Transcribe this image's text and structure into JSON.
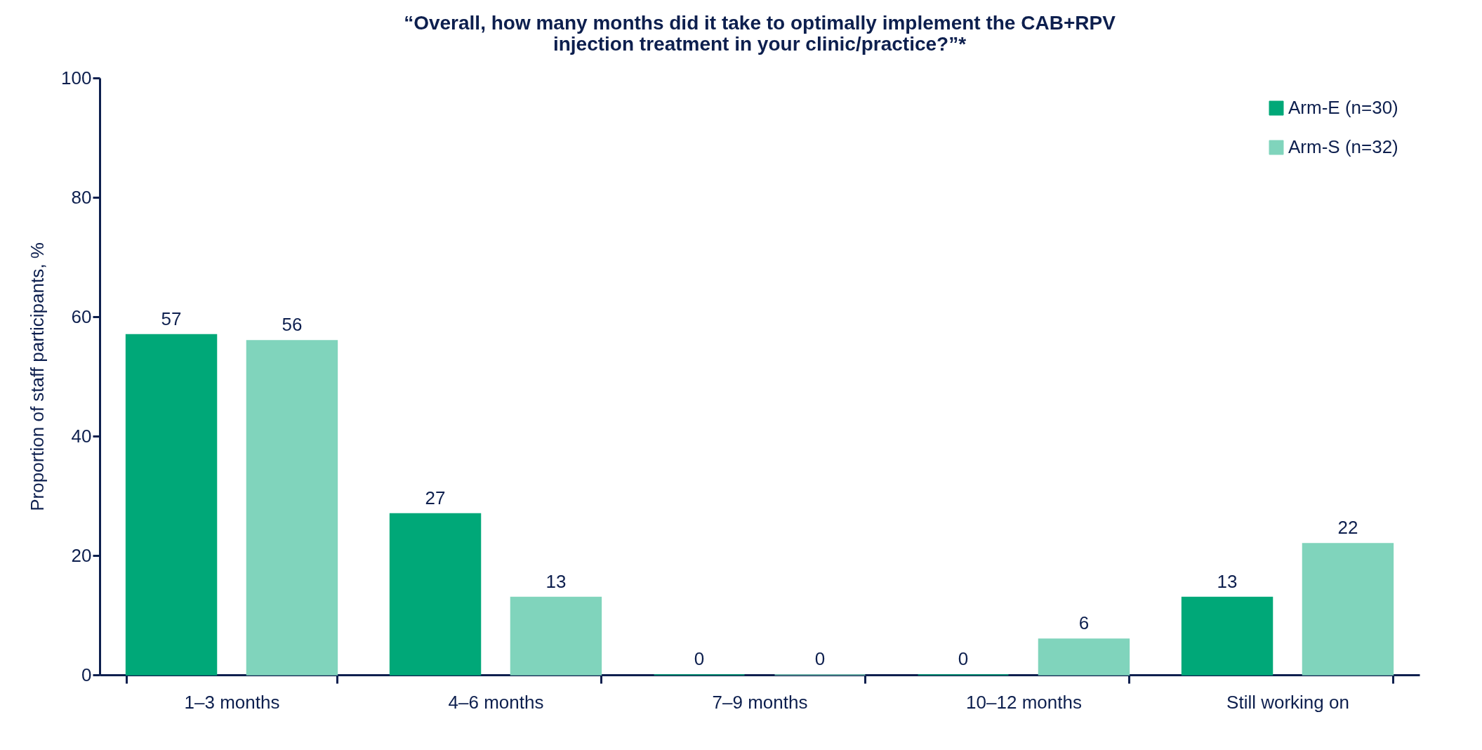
{
  "chart_data": {
    "type": "bar",
    "title": [
      "“Overall, how many months did it take to optimally implement the CAB+RPV",
      "injection treatment in your clinic/practice?”*"
    ],
    "categories": [
      "1–3 months",
      "4–6 months",
      "7–9 months",
      "10–12 months",
      "Still working on"
    ],
    "series": [
      {
        "name": "Arm-E (n=30)",
        "color": "#00a878",
        "values": [
          57,
          27,
          0,
          0,
          13
        ]
      },
      {
        "name": "Arm-S (n=32)",
        "color": "#80d4bc",
        "values": [
          56,
          13,
          0,
          6,
          22
        ]
      }
    ],
    "ylabel": "Proportion of staff participants, %",
    "ylim": [
      0,
      100
    ],
    "yticks": [
      0,
      20,
      40,
      60,
      80,
      100
    ],
    "data_labels": true,
    "legend": "top right",
    "grid": false
  }
}
